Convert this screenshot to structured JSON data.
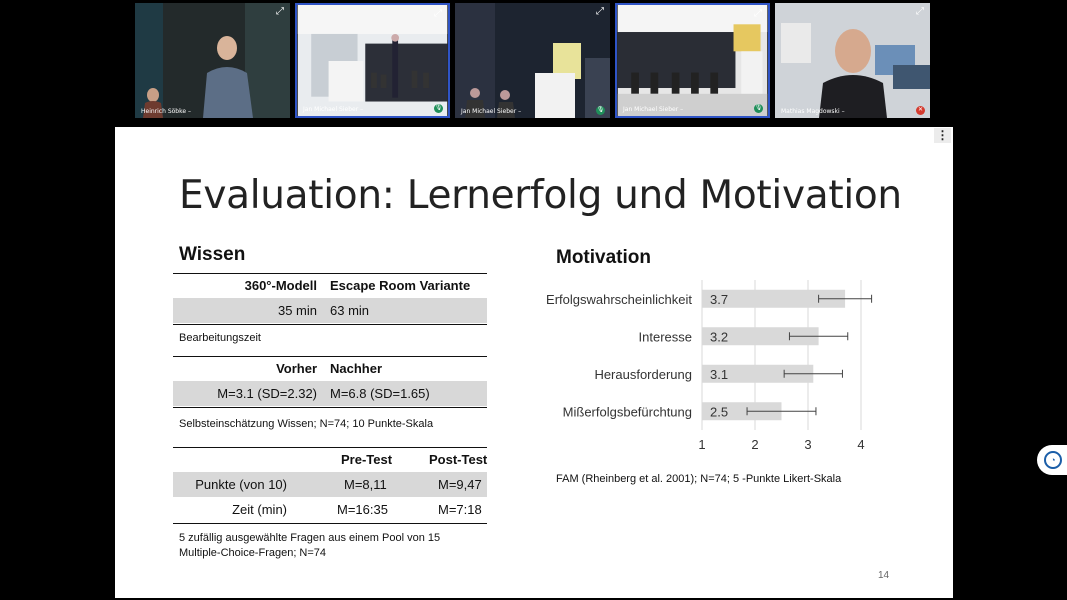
{
  "participants": [
    {
      "name": "Heinrich Söbke",
      "active": false,
      "mic": "none"
    },
    {
      "name": "Jan Michael Sieber",
      "active": true,
      "mic": "on"
    },
    {
      "name": "Jan Michael Sieber",
      "active": false,
      "mic": "on"
    },
    {
      "name": "Jan Michael Sieber",
      "active": true,
      "mic": "on"
    },
    {
      "name": "Mathias Magdowski",
      "active": false,
      "mic": "muted"
    }
  ],
  "icons": {
    "expand": "expand-icon",
    "mic": "microphone-icon",
    "mic_muted": "microphone-muted-icon",
    "menu": "more-vertical-icon",
    "assist": "accessibility-icon"
  },
  "colors": {
    "active_border": "#2f54c6",
    "mic_on": "#1f8f5a",
    "mic_muted": "#d43b2f",
    "bar": "#d9d9d9",
    "table_shade": "#d8d8d8"
  },
  "slide": {
    "title": "Evaluation: Lernerfolg und Motivation",
    "page_number": "14",
    "left": {
      "heading": "Wissen",
      "table1": {
        "headers": [
          "360°-Modell",
          "Escape Room Variante"
        ],
        "values": [
          "35 min",
          "63 min"
        ],
        "caption": "Bearbeitungszeit"
      },
      "table2": {
        "headers": [
          "Vorher",
          "Nachher"
        ],
        "values": [
          "M=3.1 (SD=2.32)",
          "M=6.8 (SD=1.65)"
        ],
        "caption": "Selbsteinschätzung Wissen; N=74; 10 Punkte-Skala"
      },
      "table3": {
        "headers": [
          "",
          "Pre-Test",
          "Post-Test"
        ],
        "rows": [
          [
            "Punkte (von 10)",
            "M=8,11",
            "M=9,47"
          ],
          [
            "Zeit (min)",
            "M=16:35",
            "M=7:18"
          ]
        ],
        "caption_line1": "5 zufällig ausgewählte Fragen aus einem Pool von 15",
        "caption_line2": "Multiple-Choice-Fragen; N=74"
      }
    },
    "right": {
      "heading": "Motivation",
      "caption": "FAM  (Rheinberg et al. 2001); N=74; 5 -Punkte Likert-Skala"
    }
  },
  "chart_data": {
    "type": "bar",
    "orientation": "horizontal",
    "categories": [
      "Erfolgswahrscheinlichkeit",
      "Interesse",
      "Herausforderung",
      "Mißerfolgsbefürchtung"
    ],
    "values": [
      3.7,
      3.2,
      3.1,
      2.5
    ],
    "error_low": [
      3.2,
      2.65,
      2.55,
      1.85
    ],
    "error_high": [
      4.2,
      3.75,
      3.65,
      3.15
    ],
    "xticks": [
      1,
      2,
      3,
      4
    ],
    "xlim": [
      1,
      4
    ],
    "grid": "vertical",
    "legend": "none"
  }
}
